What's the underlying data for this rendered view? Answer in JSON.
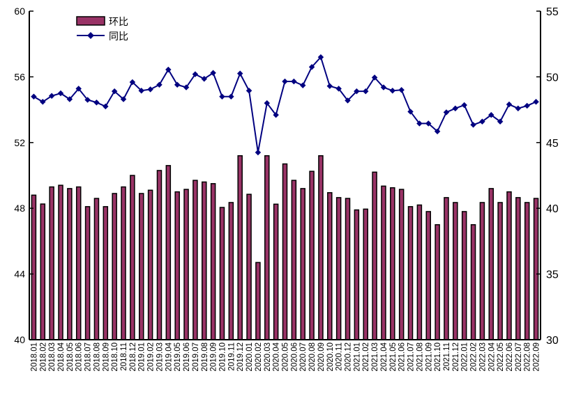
{
  "chart_data": {
    "type": "bar+line",
    "title": "",
    "categories": [
      "2018.01",
      "2018.02",
      "2018.03",
      "2018.04",
      "2018.05",
      "2018.06",
      "2018.07",
      "2018.08",
      "2018.09",
      "2018.10",
      "2018.11",
      "2018.12",
      "2019.01",
      "2019.02",
      "2019.03",
      "2019.04",
      "2019.05",
      "2019.06",
      "2019.07",
      "2019.08",
      "2019.09",
      "2019.10",
      "2019.11",
      "2019.12",
      "2020.01",
      "2020.02",
      "2020.03",
      "2020.04",
      "2020.05",
      "2020.06",
      "2020.07",
      "2020.08",
      "2020.09",
      "2020.10",
      "2020.11",
      "2020.12",
      "2021.01",
      "2021.02",
      "2021.03",
      "2021.04",
      "2021.05",
      "2021.06",
      "2021.07",
      "2021.08",
      "2021.09",
      "2021.10",
      "2021.11",
      "2021.12",
      "2022.01",
      "2022.02",
      "2022.03",
      "2022.04",
      "2022.05",
      "2022.06",
      "2022.07",
      "2022.08",
      "2022.09"
    ],
    "series": [
      {
        "name": "环比",
        "type": "bar",
        "axis": "left",
        "color": "#993366",
        "values": [
          48.8,
          48.26,
          49.3,
          49.4,
          49.2,
          49.3,
          48.1,
          48.6,
          48.1,
          48.9,
          49.3,
          50.0,
          48.9,
          49.1,
          50.3,
          50.6,
          49.0,
          49.15,
          49.7,
          49.6,
          49.5,
          48.05,
          48.35,
          51.2,
          48.85,
          44.7,
          51.2,
          48.25,
          50.7,
          49.7,
          49.2,
          50.25,
          51.2,
          48.95,
          48.65,
          48.6,
          47.9,
          47.95,
          50.2,
          49.35,
          49.25,
          49.15,
          48.1,
          48.2,
          47.8,
          47.0,
          48.65,
          48.35,
          47.8,
          47.0,
          48.35,
          49.2,
          48.35,
          49.0,
          48.65,
          48.35,
          48.6
        ]
      },
      {
        "name": "同比",
        "type": "line",
        "axis": "right",
        "color": "#000080",
        "values": [
          48.5,
          48.1,
          48.55,
          48.75,
          48.3,
          49.1,
          48.25,
          48.05,
          47.75,
          48.9,
          48.3,
          49.6,
          48.95,
          49.05,
          49.4,
          50.55,
          49.4,
          49.2,
          50.2,
          49.85,
          50.3,
          48.5,
          48.5,
          50.25,
          48.95,
          44.25,
          48.0,
          47.1,
          49.65,
          49.65,
          49.35,
          50.75,
          51.5,
          49.3,
          49.1,
          48.2,
          48.9,
          48.9,
          49.95,
          49.2,
          48.95,
          49.0,
          47.35,
          46.45,
          46.45,
          45.85,
          47.3,
          47.6,
          47.85,
          46.35,
          46.6,
          47.1,
          46.6,
          47.9,
          47.6,
          47.8,
          48.1
        ]
      }
    ],
    "left_axis": {
      "ylim": [
        40,
        60
      ],
      "ticks": [
        "40",
        "44",
        "48",
        "52",
        "56",
        "60"
      ]
    },
    "right_axis": {
      "ylim": [
        30,
        55
      ],
      "ticks": [
        "30",
        "35",
        "40",
        "45",
        "50",
        "55"
      ]
    },
    "xlabel": "",
    "ylabel": "",
    "grid": false,
    "legend": {
      "placement": "top-left",
      "entries": [
        "环比",
        "同比"
      ]
    }
  }
}
